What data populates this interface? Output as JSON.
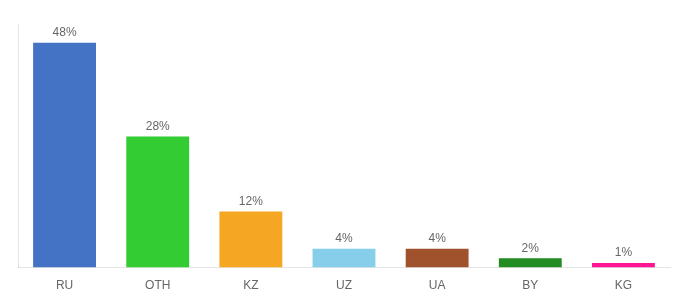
{
  "chart_data": {
    "type": "bar",
    "categories": [
      "RU",
      "OTH",
      "KZ",
      "UZ",
      "UA",
      "BY",
      "KG"
    ],
    "values": [
      48,
      28,
      12,
      4,
      4,
      2,
      1
    ],
    "value_labels": [
      "48%",
      "28%",
      "12%",
      "4%",
      "4%",
      "2%",
      "1%"
    ],
    "colors": [
      "#4472c4",
      "#33cc33",
      "#f5a623",
      "#87ceeb",
      "#a0522d",
      "#228B22",
      "#ff1493"
    ],
    "ylim": [
      0,
      52
    ],
    "grid": false,
    "data_labels": true,
    "tick_labels": "x"
  }
}
